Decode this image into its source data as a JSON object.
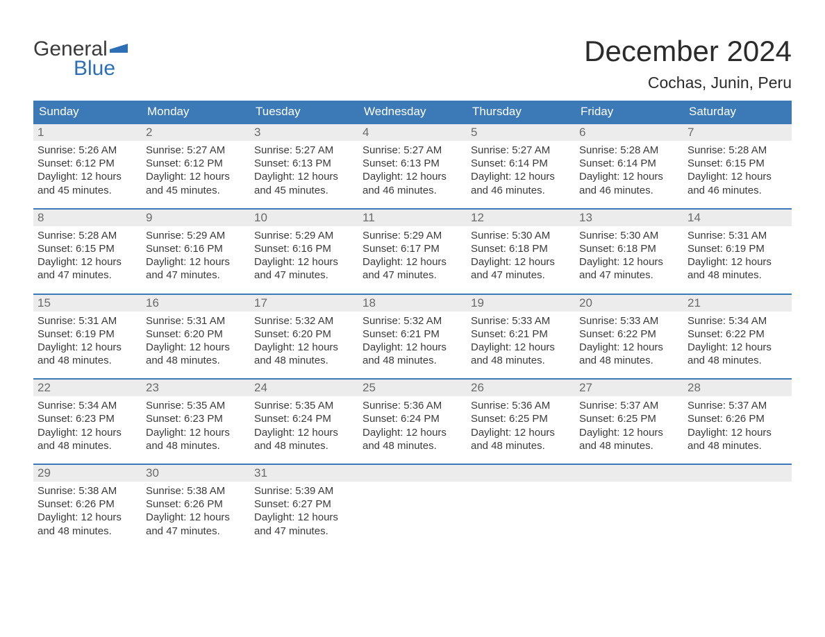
{
  "brand": {
    "top": "General",
    "bottom": "Blue",
    "flag_color": "#2d6fb5",
    "text_dark": "#3a3a3a"
  },
  "title": {
    "month": "December 2024",
    "location": "Cochas, Junin, Peru"
  },
  "colors": {
    "header_bg": "#3b79b7",
    "header_text": "#ffffff",
    "row_border": "#3b79b7",
    "daynum_bg": "#ececec",
    "daynum_text": "#6a6a6a",
    "body_text": "#3a3a3a",
    "page_bg": "#ffffff"
  },
  "layout": {
    "columns": 7,
    "weekday_fontsize": 17,
    "daynum_fontsize": 17,
    "body_fontsize": 15,
    "title_fontsize": 42,
    "location_fontsize": 23
  },
  "weekdays": [
    "Sunday",
    "Monday",
    "Tuesday",
    "Wednesday",
    "Thursday",
    "Friday",
    "Saturday"
  ],
  "weeks": [
    [
      {
        "n": "1",
        "sr": "Sunrise: 5:26 AM",
        "ss": "Sunset: 6:12 PM",
        "d1": "Daylight: 12 hours",
        "d2": "and 45 minutes."
      },
      {
        "n": "2",
        "sr": "Sunrise: 5:27 AM",
        "ss": "Sunset: 6:12 PM",
        "d1": "Daylight: 12 hours",
        "d2": "and 45 minutes."
      },
      {
        "n": "3",
        "sr": "Sunrise: 5:27 AM",
        "ss": "Sunset: 6:13 PM",
        "d1": "Daylight: 12 hours",
        "d2": "and 45 minutes."
      },
      {
        "n": "4",
        "sr": "Sunrise: 5:27 AM",
        "ss": "Sunset: 6:13 PM",
        "d1": "Daylight: 12 hours",
        "d2": "and 46 minutes."
      },
      {
        "n": "5",
        "sr": "Sunrise: 5:27 AM",
        "ss": "Sunset: 6:14 PM",
        "d1": "Daylight: 12 hours",
        "d2": "and 46 minutes."
      },
      {
        "n": "6",
        "sr": "Sunrise: 5:28 AM",
        "ss": "Sunset: 6:14 PM",
        "d1": "Daylight: 12 hours",
        "d2": "and 46 minutes."
      },
      {
        "n": "7",
        "sr": "Sunrise: 5:28 AM",
        "ss": "Sunset: 6:15 PM",
        "d1": "Daylight: 12 hours",
        "d2": "and 46 minutes."
      }
    ],
    [
      {
        "n": "8",
        "sr": "Sunrise: 5:28 AM",
        "ss": "Sunset: 6:15 PM",
        "d1": "Daylight: 12 hours",
        "d2": "and 47 minutes."
      },
      {
        "n": "9",
        "sr": "Sunrise: 5:29 AM",
        "ss": "Sunset: 6:16 PM",
        "d1": "Daylight: 12 hours",
        "d2": "and 47 minutes."
      },
      {
        "n": "10",
        "sr": "Sunrise: 5:29 AM",
        "ss": "Sunset: 6:16 PM",
        "d1": "Daylight: 12 hours",
        "d2": "and 47 minutes."
      },
      {
        "n": "11",
        "sr": "Sunrise: 5:29 AM",
        "ss": "Sunset: 6:17 PM",
        "d1": "Daylight: 12 hours",
        "d2": "and 47 minutes."
      },
      {
        "n": "12",
        "sr": "Sunrise: 5:30 AM",
        "ss": "Sunset: 6:18 PM",
        "d1": "Daylight: 12 hours",
        "d2": "and 47 minutes."
      },
      {
        "n": "13",
        "sr": "Sunrise: 5:30 AM",
        "ss": "Sunset: 6:18 PM",
        "d1": "Daylight: 12 hours",
        "d2": "and 47 minutes."
      },
      {
        "n": "14",
        "sr": "Sunrise: 5:31 AM",
        "ss": "Sunset: 6:19 PM",
        "d1": "Daylight: 12 hours",
        "d2": "and 48 minutes."
      }
    ],
    [
      {
        "n": "15",
        "sr": "Sunrise: 5:31 AM",
        "ss": "Sunset: 6:19 PM",
        "d1": "Daylight: 12 hours",
        "d2": "and 48 minutes."
      },
      {
        "n": "16",
        "sr": "Sunrise: 5:31 AM",
        "ss": "Sunset: 6:20 PM",
        "d1": "Daylight: 12 hours",
        "d2": "and 48 minutes."
      },
      {
        "n": "17",
        "sr": "Sunrise: 5:32 AM",
        "ss": "Sunset: 6:20 PM",
        "d1": "Daylight: 12 hours",
        "d2": "and 48 minutes."
      },
      {
        "n": "18",
        "sr": "Sunrise: 5:32 AM",
        "ss": "Sunset: 6:21 PM",
        "d1": "Daylight: 12 hours",
        "d2": "and 48 minutes."
      },
      {
        "n": "19",
        "sr": "Sunrise: 5:33 AM",
        "ss": "Sunset: 6:21 PM",
        "d1": "Daylight: 12 hours",
        "d2": "and 48 minutes."
      },
      {
        "n": "20",
        "sr": "Sunrise: 5:33 AM",
        "ss": "Sunset: 6:22 PM",
        "d1": "Daylight: 12 hours",
        "d2": "and 48 minutes."
      },
      {
        "n": "21",
        "sr": "Sunrise: 5:34 AM",
        "ss": "Sunset: 6:22 PM",
        "d1": "Daylight: 12 hours",
        "d2": "and 48 minutes."
      }
    ],
    [
      {
        "n": "22",
        "sr": "Sunrise: 5:34 AM",
        "ss": "Sunset: 6:23 PM",
        "d1": "Daylight: 12 hours",
        "d2": "and 48 minutes."
      },
      {
        "n": "23",
        "sr": "Sunrise: 5:35 AM",
        "ss": "Sunset: 6:23 PM",
        "d1": "Daylight: 12 hours",
        "d2": "and 48 minutes."
      },
      {
        "n": "24",
        "sr": "Sunrise: 5:35 AM",
        "ss": "Sunset: 6:24 PM",
        "d1": "Daylight: 12 hours",
        "d2": "and 48 minutes."
      },
      {
        "n": "25",
        "sr": "Sunrise: 5:36 AM",
        "ss": "Sunset: 6:24 PM",
        "d1": "Daylight: 12 hours",
        "d2": "and 48 minutes."
      },
      {
        "n": "26",
        "sr": "Sunrise: 5:36 AM",
        "ss": "Sunset: 6:25 PM",
        "d1": "Daylight: 12 hours",
        "d2": "and 48 minutes."
      },
      {
        "n": "27",
        "sr": "Sunrise: 5:37 AM",
        "ss": "Sunset: 6:25 PM",
        "d1": "Daylight: 12 hours",
        "d2": "and 48 minutes."
      },
      {
        "n": "28",
        "sr": "Sunrise: 5:37 AM",
        "ss": "Sunset: 6:26 PM",
        "d1": "Daylight: 12 hours",
        "d2": "and 48 minutes."
      }
    ],
    [
      {
        "n": "29",
        "sr": "Sunrise: 5:38 AM",
        "ss": "Sunset: 6:26 PM",
        "d1": "Daylight: 12 hours",
        "d2": "and 48 minutes."
      },
      {
        "n": "30",
        "sr": "Sunrise: 5:38 AM",
        "ss": "Sunset: 6:26 PM",
        "d1": "Daylight: 12 hours",
        "d2": "and 47 minutes."
      },
      {
        "n": "31",
        "sr": "Sunrise: 5:39 AM",
        "ss": "Sunset: 6:27 PM",
        "d1": "Daylight: 12 hours",
        "d2": "and 47 minutes."
      },
      {
        "n": "",
        "sr": "",
        "ss": "",
        "d1": "",
        "d2": ""
      },
      {
        "n": "",
        "sr": "",
        "ss": "",
        "d1": "",
        "d2": ""
      },
      {
        "n": "",
        "sr": "",
        "ss": "",
        "d1": "",
        "d2": ""
      },
      {
        "n": "",
        "sr": "",
        "ss": "",
        "d1": "",
        "d2": ""
      }
    ]
  ]
}
